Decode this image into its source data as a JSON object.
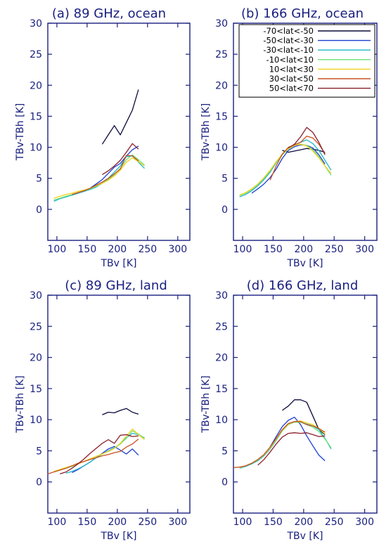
{
  "chart_data": [
    {
      "type": "line",
      "title": "(a) 89 GHz, ocean",
      "xlabel": "TBv [K]",
      "ylabel": "TBv-TBh [K]",
      "xlim": [
        85,
        320
      ],
      "ylim": [
        -5,
        30
      ],
      "xticks": [
        100,
        150,
        200,
        250,
        300
      ],
      "yticks": [
        0,
        5,
        10,
        15,
        20,
        25,
        30
      ],
      "legend": "none",
      "series": [
        {
          "color": "#0a0a3a",
          "x": [
            175,
            185,
            195,
            205,
            215,
            225,
            235
          ],
          "y": [
            10.5,
            12,
            13.5,
            12,
            14,
            16,
            19.3
          ]
        },
        {
          "color": "#1d3fd0",
          "x": [
            125,
            135,
            145,
            155,
            165,
            175,
            185,
            195,
            205,
            215,
            225,
            235
          ],
          "y": [
            2.3,
            2.6,
            2.9,
            3.4,
            4.1,
            4.8,
            5.8,
            6.8,
            7.4,
            8.6,
            9.6,
            10.2
          ]
        },
        {
          "color": "#1fb5c8",
          "x": [
            95,
            105,
            115,
            125,
            135,
            145,
            155,
            165,
            175,
            185,
            195,
            205,
            215,
            225,
            235,
            245
          ],
          "y": [
            1.3,
            1.7,
            2.0,
            2.3,
            2.6,
            2.9,
            3.2,
            3.6,
            4.2,
            5.0,
            6.0,
            7.0,
            8.5,
            8.6,
            7.6,
            6.6
          ]
        },
        {
          "color": "#6fe07a",
          "x": [
            95,
            105,
            115,
            125,
            135,
            145,
            155,
            165,
            175,
            185,
            195,
            205,
            215,
            225,
            235,
            245
          ],
          "y": [
            1.5,
            1.8,
            2.1,
            2.4,
            2.7,
            3.0,
            3.3,
            3.7,
            4.2,
            4.8,
            5.6,
            6.6,
            8.0,
            8.8,
            8.0,
            7.1
          ]
        },
        {
          "color": "#f0d21a",
          "x": [
            95,
            105,
            115,
            125,
            135,
            145,
            155,
            165,
            175,
            185,
            195,
            205,
            215,
            225,
            235,
            245
          ],
          "y": [
            1.8,
            2.1,
            2.4,
            2.6,
            2.9,
            3.1,
            3.4,
            3.8,
            4.2,
            4.7,
            5.4,
            6.3,
            7.6,
            8.3,
            7.7,
            7.0
          ]
        },
        {
          "color": "#c8501e",
          "x": [
            125,
            135,
            145,
            155,
            165,
            175,
            185,
            195,
            205,
            215,
            225,
            235
          ],
          "y": [
            2.4,
            2.7,
            3.0,
            3.4,
            3.9,
            4.4,
            5.0,
            5.7,
            6.5,
            8.7,
            8.6,
            7.8
          ]
        },
        {
          "color": "#8a1f2a",
          "x": [
            175,
            185,
            195,
            205,
            215,
            225,
            235
          ],
          "y": [
            5.6,
            6.2,
            7.0,
            7.9,
            9.2,
            10.6,
            9.7
          ]
        }
      ]
    },
    {
      "type": "line",
      "title": "(b) 166 GHz, ocean",
      "xlabel": "TBv [K]",
      "ylabel": "TBv-TBh [K]",
      "xlim": [
        85,
        320
      ],
      "ylim": [
        -5,
        30
      ],
      "xticks": [
        100,
        150,
        200,
        250,
        300
      ],
      "yticks": [
        0,
        5,
        10,
        15,
        20,
        25,
        30
      ],
      "legend": "top-right",
      "series": [
        {
          "name": "-70<lat<-50",
          "color": "#0a0a3a",
          "x": [
            165,
            175,
            185,
            195,
            205,
            215,
            225,
            235
          ],
          "y": [
            9.5,
            9.2,
            9.4,
            9.6,
            9.8,
            9.7,
            9.5,
            9.2
          ]
        },
        {
          "name": "-50<lat<-30",
          "color": "#1d3fd0",
          "x": [
            115,
            125,
            135,
            145,
            155,
            165,
            175,
            185,
            195,
            205,
            215,
            225,
            235
          ],
          "y": [
            2.6,
            3.3,
            4.1,
            5.1,
            6.5,
            8.2,
            9.5,
            10.1,
            10.4,
            10.3,
            9.9,
            8.8,
            7.3
          ]
        },
        {
          "name": "-30<lat<-10",
          "color": "#1fb5c8",
          "x": [
            95,
            105,
            115,
            125,
            135,
            145,
            155,
            165,
            175,
            185,
            195,
            205,
            215,
            225,
            235,
            245
          ],
          "y": [
            2.0,
            2.4,
            3.0,
            3.8,
            4.8,
            6.0,
            7.5,
            8.8,
            9.8,
            10.4,
            10.8,
            11.2,
            10.6,
            9.5,
            7.9,
            6.3
          ]
        },
        {
          "name": "-10<lat<10",
          "color": "#6fe07a",
          "x": [
            95,
            105,
            115,
            125,
            135,
            145,
            155,
            165,
            175,
            185,
            195,
            205,
            215,
            225,
            235,
            245
          ],
          "y": [
            2.2,
            2.6,
            3.2,
            4.0,
            5.0,
            6.2,
            7.6,
            8.8,
            9.7,
            10.3,
            10.5,
            10.3,
            9.6,
            8.5,
            7.0,
            5.5
          ]
        },
        {
          "name": "10<lat<30",
          "color": "#f0d21a",
          "x": [
            95,
            105,
            115,
            125,
            135,
            145,
            155,
            165,
            175,
            185,
            195,
            205,
            215,
            225,
            235,
            245
          ],
          "y": [
            2.3,
            2.7,
            3.3,
            4.1,
            5.1,
            6.3,
            7.7,
            8.9,
            9.8,
            10.3,
            10.5,
            10.2,
            9.4,
            8.3,
            7.0,
            5.8
          ]
        },
        {
          "name": "30<lat<50",
          "color": "#c8501e",
          "x": [
            145,
            155,
            165,
            175,
            185,
            195,
            205,
            215,
            225,
            235
          ],
          "y": [
            4.7,
            7.0,
            8.9,
            10.0,
            10.4,
            10.8,
            11.8,
            11.5,
            10.5,
            9.0
          ]
        },
        {
          "name": "50<lat<70",
          "color": "#8a1f2a",
          "x": [
            175,
            185,
            195,
            205,
            215,
            225,
            235
          ],
          "y": [
            9.9,
            10.5,
            11.7,
            13.2,
            12.4,
            10.8,
            8.8
          ]
        }
      ]
    },
    {
      "type": "line",
      "title": "(c) 89 GHz, land",
      "xlabel": "TBv [K]",
      "ylabel": "TBv-TBh [K]",
      "xlim": [
        85,
        320
      ],
      "ylim": [
        -5,
        30
      ],
      "xticks": [
        100,
        150,
        200,
        250,
        300
      ],
      "yticks": [
        0,
        5,
        10,
        15,
        20,
        25,
        30
      ],
      "legend": "none",
      "series": [
        {
          "color": "#0a0a3a",
          "x": [
            175,
            185,
            195,
            205,
            215,
            225,
            235
          ],
          "y": [
            10.8,
            11.2,
            11.1,
            11.5,
            11.8,
            11.2,
            10.9
          ]
        },
        {
          "color": "#1d3fd0",
          "x": [
            125,
            135,
            145,
            155,
            165,
            175,
            185,
            195,
            205,
            215,
            225,
            235
          ],
          "y": [
            1.5,
            2.0,
            2.6,
            3.2,
            3.9,
            4.6,
            5.3,
            5.7,
            5.1,
            4.5,
            5.3,
            4.3
          ]
        },
        {
          "color": "#1fb5c8",
          "x": [
            115,
            125,
            135,
            145,
            155,
            165,
            175,
            185,
            195,
            205,
            215,
            225,
            235,
            245
          ],
          "y": [
            1.4,
            1.7,
            2.1,
            2.6,
            3.2,
            3.9,
            4.5,
            5.0,
            5.5,
            6.1,
            7.1,
            7.8,
            7.6,
            7.1
          ]
        },
        {
          "color": "#6fe07a",
          "x": [
            95,
            105,
            115,
            125,
            135,
            145,
            155,
            165,
            175,
            185,
            195,
            205,
            215,
            225,
            235,
            245
          ],
          "y": [
            1.6,
            1.9,
            2.2,
            2.5,
            2.9,
            3.3,
            3.7,
            4.1,
            4.5,
            4.9,
            5.4,
            6.1,
            7.0,
            8.2,
            7.7,
            7.0
          ]
        },
        {
          "color": "#f0d21a",
          "x": [
            95,
            105,
            115,
            125,
            135,
            145,
            155,
            165,
            175,
            185,
            195,
            205,
            215,
            225,
            235,
            245
          ],
          "y": [
            1.7,
            2.0,
            2.3,
            2.6,
            2.9,
            3.3,
            3.7,
            4.1,
            4.5,
            4.9,
            5.4,
            6.2,
            7.4,
            8.5,
            7.6,
            6.8
          ]
        },
        {
          "color": "#c8501e",
          "x": [
            85,
            95,
            105,
            115,
            125,
            135,
            145,
            155,
            165,
            175,
            185,
            195,
            205,
            215,
            225,
            235
          ],
          "y": [
            1.3,
            1.6,
            1.9,
            2.2,
            2.6,
            3.0,
            3.3,
            3.6,
            3.9,
            4.2,
            4.4,
            4.7,
            4.9,
            5.6,
            6.1,
            6.9
          ]
        },
        {
          "color": "#8a1f2a",
          "x": [
            105,
            115,
            125,
            135,
            145,
            155,
            165,
            175,
            185,
            195,
            205,
            215,
            225,
            235
          ],
          "y": [
            1.3,
            1.6,
            2.2,
            2.9,
            3.7,
            4.6,
            5.4,
            6.2,
            6.8,
            6.2,
            7.5,
            7.6,
            7.3,
            7.4
          ]
        }
      ]
    },
    {
      "type": "line",
      "title": "(d) 166 GHz, land",
      "xlabel": "TBv [K]",
      "ylabel": "TBv-TBh [K]",
      "xlim": [
        85,
        320
      ],
      "ylim": [
        -5,
        30
      ],
      "xticks": [
        100,
        150,
        200,
        250,
        300
      ],
      "yticks": [
        0,
        5,
        10,
        15,
        20,
        25,
        30
      ],
      "legend": "none",
      "series": [
        {
          "color": "#0a0a3a",
          "x": [
            165,
            175,
            185,
            195,
            205,
            215,
            225,
            235
          ],
          "y": [
            11.5,
            12.2,
            13.2,
            13.2,
            12.8,
            10.6,
            8.4,
            7.6
          ]
        },
        {
          "color": "#1d3fd0",
          "x": [
            145,
            155,
            165,
            175,
            185,
            195,
            205,
            215,
            225,
            235
          ],
          "y": [
            5.6,
            7.3,
            8.9,
            9.9,
            10.4,
            9.2,
            7.4,
            5.8,
            4.3,
            3.4
          ]
        },
        {
          "color": "#1fb5c8",
          "x": [
            95,
            105,
            115,
            125,
            135,
            145,
            155,
            165,
            175,
            185,
            195,
            205,
            215,
            225,
            235,
            245
          ],
          "y": [
            2.2,
            2.5,
            2.9,
            3.4,
            4.2,
            5.3,
            6.7,
            8.2,
            9.3,
            9.7,
            9.6,
            9.3,
            9.0,
            8.4,
            7.0,
            5.3
          ]
        },
        {
          "color": "#6fe07a",
          "x": [
            95,
            105,
            115,
            125,
            135,
            145,
            155,
            165,
            175,
            185,
            195,
            205,
            215,
            225,
            235,
            245
          ],
          "y": [
            2.3,
            2.6,
            3.0,
            3.5,
            4.3,
            5.4,
            6.8,
            8.2,
            9.2,
            9.6,
            9.6,
            9.2,
            8.8,
            8.1,
            6.9,
            5.5
          ]
        },
        {
          "color": "#f0d21a",
          "x": [
            95,
            105,
            115,
            125,
            135,
            145,
            155,
            165,
            175,
            185,
            195,
            205,
            215,
            225,
            235
          ],
          "y": [
            2.3,
            2.6,
            3.0,
            3.6,
            4.4,
            5.5,
            6.9,
            8.3,
            9.3,
            9.7,
            9.8,
            9.5,
            9.2,
            8.6,
            7.7
          ]
        },
        {
          "color": "#c8501e",
          "x": [
            85,
            95,
            105,
            115,
            125,
            135,
            145,
            155,
            165,
            175,
            185,
            195,
            205,
            215,
            225,
            235
          ],
          "y": [
            2.3,
            2.4,
            2.6,
            3.0,
            3.6,
            4.4,
            5.6,
            7.0,
            8.4,
            9.4,
            9.7,
            9.7,
            9.2,
            9.0,
            8.6,
            8.0
          ]
        },
        {
          "color": "#8a1f2a",
          "x": [
            125,
            135,
            145,
            155,
            165,
            175,
            185,
            195,
            205,
            215,
            225,
            235
          ],
          "y": [
            2.7,
            3.6,
            4.8,
            6.1,
            7.2,
            7.8,
            7.9,
            7.8,
            7.9,
            7.6,
            7.3,
            7.4
          ]
        }
      ]
    }
  ]
}
